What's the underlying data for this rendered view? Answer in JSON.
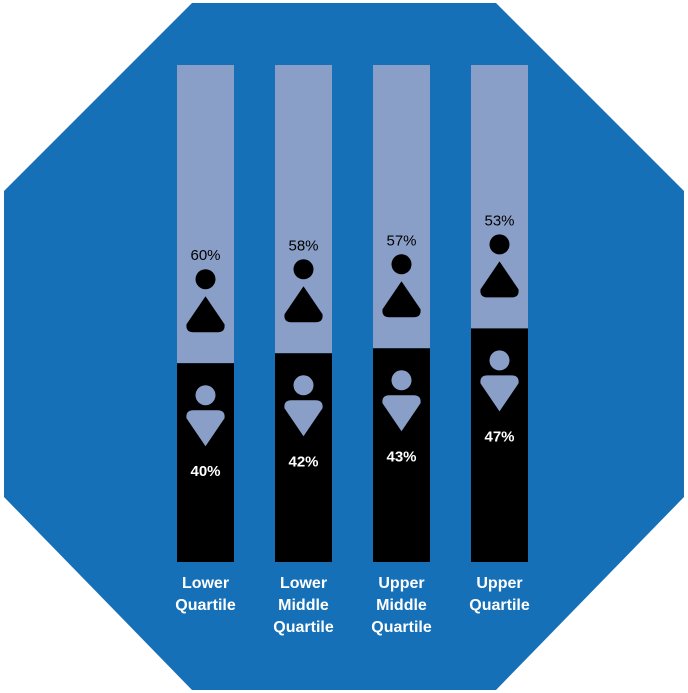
{
  "colors": {
    "background": "#1570b8",
    "top_segment": "#8a9fc8",
    "bottom_segment": "#000000",
    "top_icon": "#000000",
    "bottom_icon": "#8a9fc8",
    "label": "#ffffff"
  },
  "icons": {
    "top_segment": "person-triangle-up-icon",
    "bottom_segment": "person-triangle-down-icon"
  },
  "chart_data": {
    "type": "bar",
    "stacked": true,
    "orientation": "vertical",
    "ylim": [
      0,
      100
    ],
    "categories": [
      [
        "Lower",
        "Quartile"
      ],
      [
        "Lower",
        "Middle",
        "Quartile"
      ],
      [
        "Upper",
        "Middle",
        "Quartile"
      ],
      [
        "Upper",
        "Quartile"
      ]
    ],
    "series": [
      {
        "values": [
          40,
          42,
          43,
          47
        ],
        "labels": [
          "40%",
          "42%",
          "43%",
          "47%"
        ]
      },
      {
        "values": [
          60,
          58,
          57,
          53
        ],
        "labels": [
          "60%",
          "58%",
          "57%",
          "53%"
        ]
      }
    ]
  }
}
